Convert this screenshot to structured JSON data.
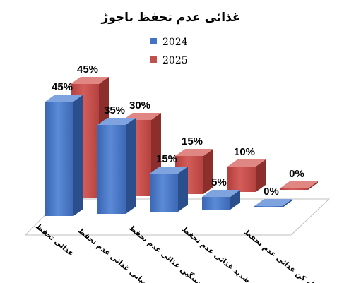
{
  "chart_data": {
    "type": "bar",
    "title": "غذائی عدم تحفظ باجوڑ",
    "categories": [
      "غذائی تحفظ",
      "درمیانی غذائی عدم تحفظ",
      "سنگین غذائی عدم تحفظ",
      "شدید غذائی عدم تحفظ",
      "تباہ کن غذائی عدم تحفظ"
    ],
    "series": [
      {
        "name": "2024",
        "values": [
          45,
          35,
          15,
          5,
          0
        ],
        "color": "#4472C4"
      },
      {
        "name": "2025",
        "values": [
          45,
          30,
          15,
          10,
          0
        ],
        "color": "#C0504D"
      }
    ],
    "value_labels": [
      [
        "45%",
        "35%",
        "15%",
        "5%",
        "0%"
      ],
      [
        "45%",
        "30%",
        "15%",
        "10%",
        "0%"
      ]
    ],
    "ylim": [
      0,
      50
    ],
    "legend_position": "top-center",
    "style": "3d-clustered-column"
  }
}
